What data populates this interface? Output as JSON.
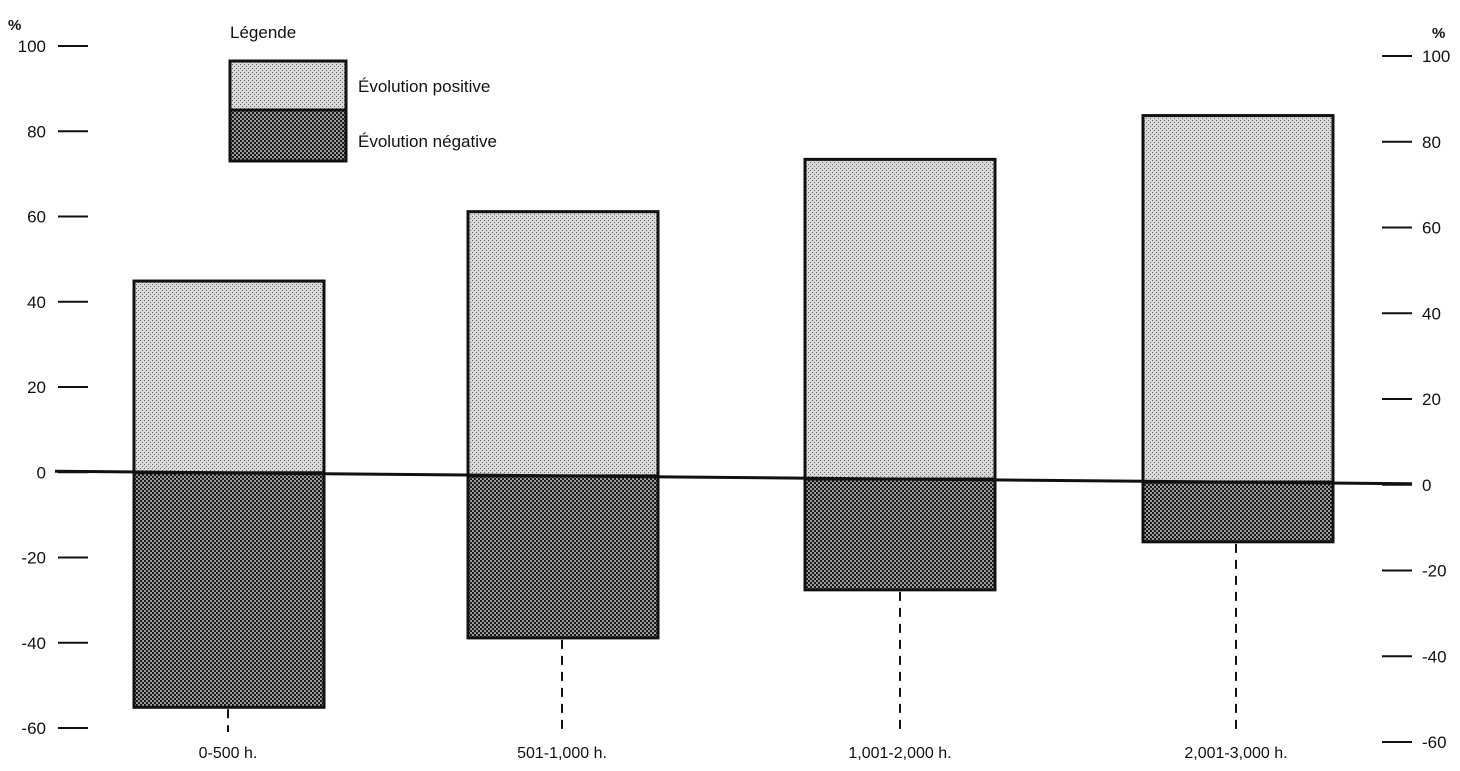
{
  "chart_data": {
    "type": "bar",
    "stacked": "diverging",
    "categories": [
      "0-500 h.",
      "501-1,000 h.",
      "1,001-2,000 h.",
      "2,001-3,000 h."
    ],
    "series": [
      {
        "name": "Évolution positive",
        "values": [
          45,
          62,
          75,
          86
        ]
      },
      {
        "name": "Évolution négative",
        "values": [
          -55,
          -38,
          -26,
          -14
        ]
      }
    ],
    "y_unit_label": "%",
    "ylim": [
      -60,
      100
    ],
    "yticks": [
      "100",
      "80",
      "60",
      "40",
      "20",
      "0",
      "-20",
      "-40",
      "-60"
    ],
    "legend": {
      "title": "Légende",
      "position": "top-left",
      "items": [
        "Évolution positive",
        "Évolution négative"
      ]
    },
    "grid": false,
    "colors": {
      "positive_fill": "#cfcfcf",
      "negative_fill": "#7a7a7a",
      "ink": "#111111"
    }
  }
}
